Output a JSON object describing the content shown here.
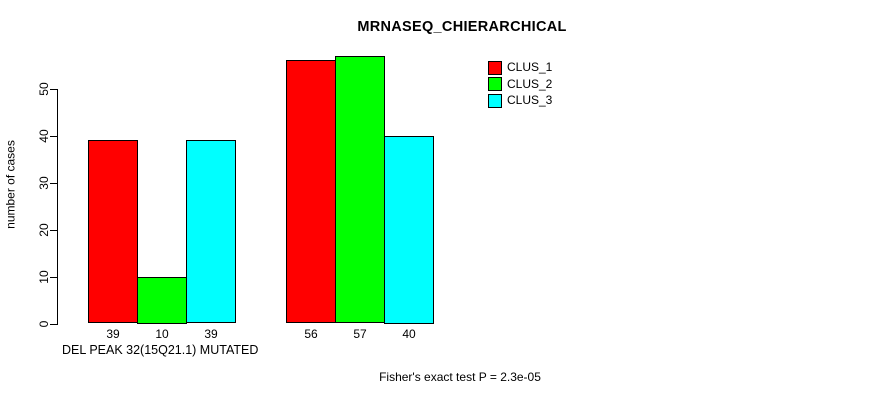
{
  "chart_data": {
    "type": "bar",
    "title": "MRNASEQ_CHIERARCHICAL",
    "xlabel": "DEL PEAK 32(15Q21.1) MUTATED",
    "ylabel": "number of cases",
    "ylim": [
      0,
      50
    ],
    "yticks": [
      0,
      10,
      20,
      30,
      40,
      50
    ],
    "grid": false,
    "legend_position": "top-right",
    "groups": 2,
    "series": [
      {
        "name": "CLUS_1",
        "color": "#ff0000",
        "values": [
          39,
          56
        ]
      },
      {
        "name": "CLUS_2",
        "color": "#00ff00",
        "values": [
          10,
          57
        ]
      },
      {
        "name": "CLUS_3",
        "color": "#00ffff",
        "values": [
          39,
          40
        ]
      }
    ],
    "bar_value_labels": [
      "39",
      "10",
      "39",
      "56",
      "57",
      "40"
    ],
    "annotation": "Fisher's exact test P = 2.3e-05"
  }
}
